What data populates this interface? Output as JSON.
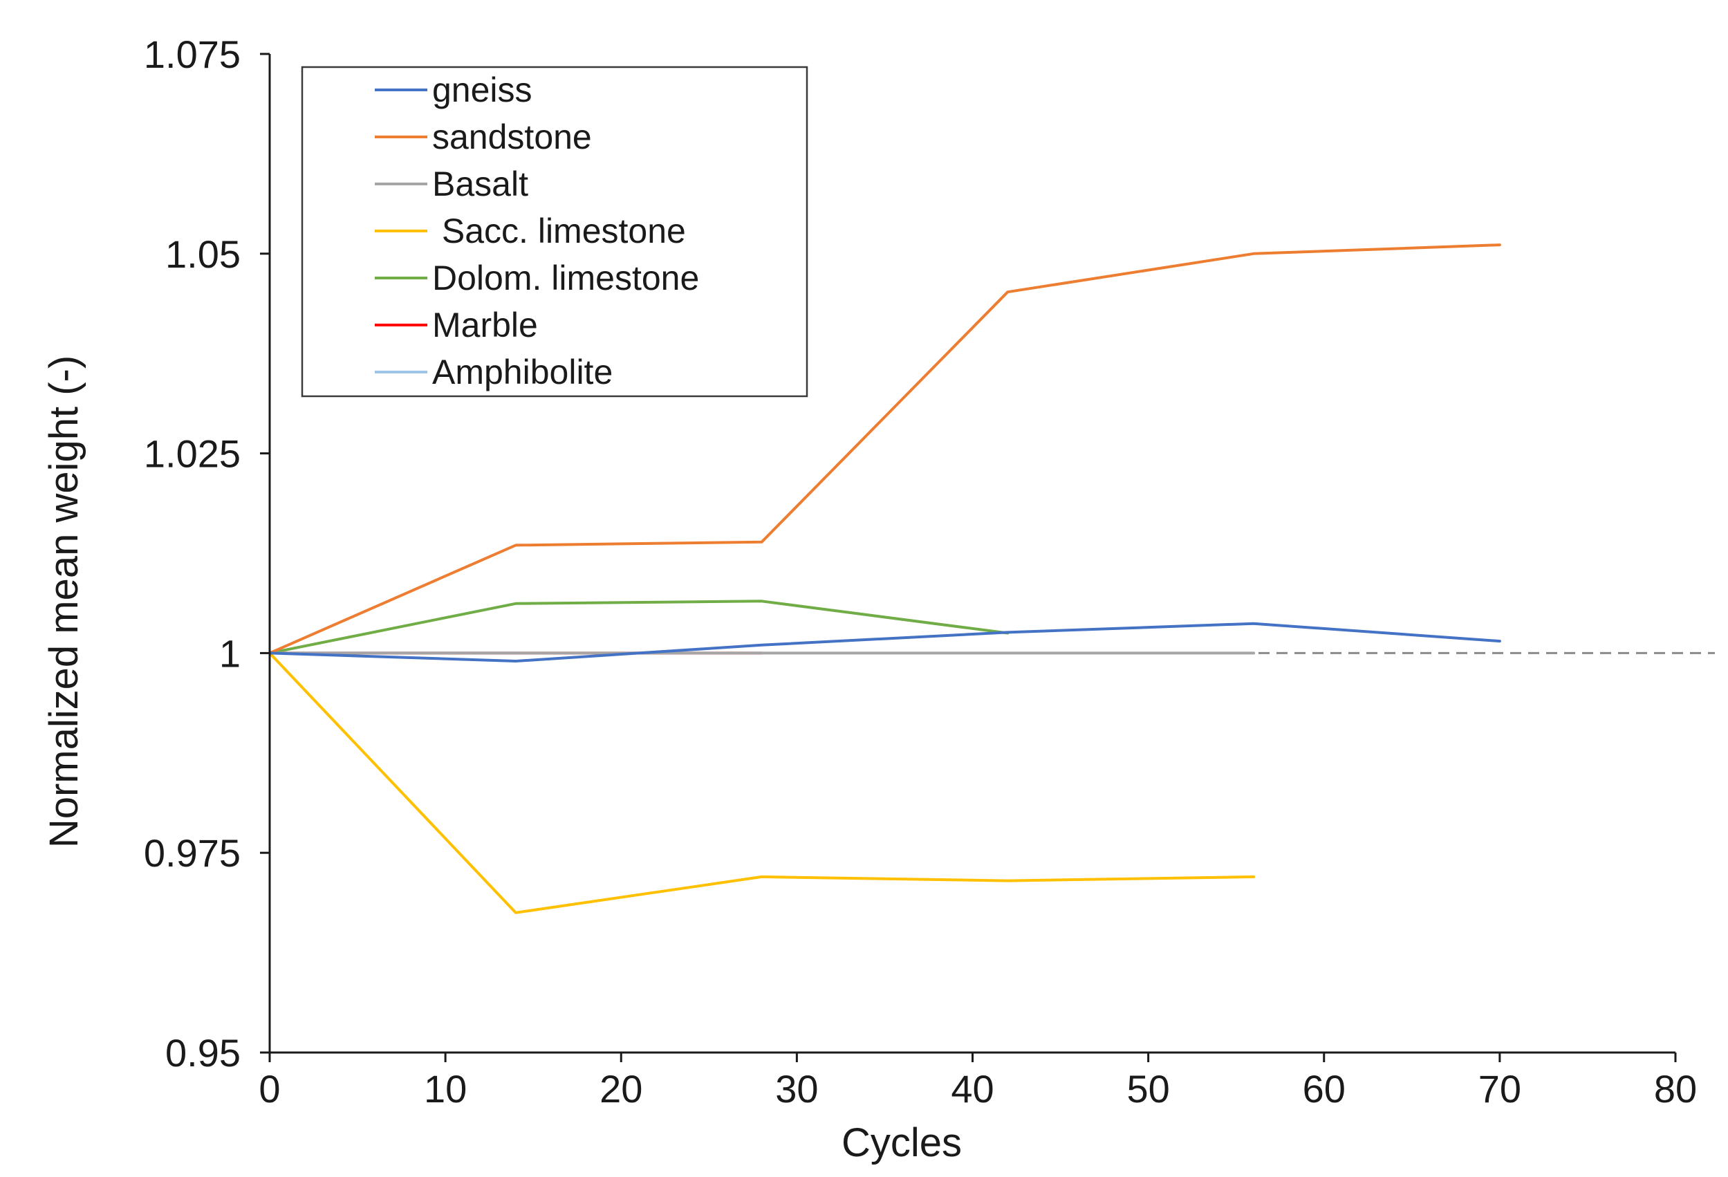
{
  "chart_data": {
    "type": "line",
    "title": "",
    "xlabel": "Cycles",
    "ylabel": "Normalized mean weight (-)",
    "xlim": [
      0,
      80
    ],
    "ylim": [
      0.95,
      1.075
    ],
    "xticks": [
      "0",
      "10",
      "20",
      "30",
      "40",
      "50",
      "60",
      "70",
      "80"
    ],
    "yticks": [
      "0.95",
      "0.975",
      "1",
      "1.025",
      "1.05",
      "1.075"
    ],
    "grid": false,
    "legend_position": "top-left",
    "reference_line": {
      "y": 1,
      "style": "dashed",
      "color": "#8a8a8a"
    },
    "series": [
      {
        "name": "gneiss",
        "color": "#4472c4",
        "x": [
          0,
          14,
          28,
          42,
          56,
          70
        ],
        "values": [
          1.0,
          0.999,
          1.001,
          1.0026,
          1.0037,
          1.0015
        ]
      },
      {
        "name": "sandstone",
        "color": "#ed7d31",
        "x": [
          0,
          14,
          28,
          42,
          56,
          70
        ],
        "values": [
          1.0,
          1.0135,
          1.0139,
          1.0452,
          1.05,
          1.0511
        ]
      },
      {
        "name": "Basalt",
        "color": "#a5a5a5",
        "x": [
          0,
          14,
          28,
          42,
          56
        ],
        "values": [
          1.0,
          1.0,
          1.0,
          1.0,
          1.0
        ]
      },
      {
        "name": " Sacc. limestone",
        "color": "#ffc000",
        "x": [
          0,
          14,
          28,
          42,
          56
        ],
        "values": [
          1.0,
          0.9675,
          0.972,
          0.9715,
          0.972
        ]
      },
      {
        "name": "Dolom. limestone",
        "color": "#70ad47",
        "x": [
          0,
          14,
          28,
          42
        ],
        "values": [
          1.0,
          1.0062,
          1.0065,
          1.0025
        ]
      },
      {
        "name": "Marble",
        "color": "#ff0000",
        "x": [
          0,
          14,
          28
        ],
        "values": [
          1.0,
          1.0,
          1.0
        ]
      },
      {
        "name": "Amphibolite",
        "color": "#9dc3e6",
        "x": [
          0,
          14
        ],
        "values": [
          1.0,
          1.0
        ]
      }
    ]
  }
}
